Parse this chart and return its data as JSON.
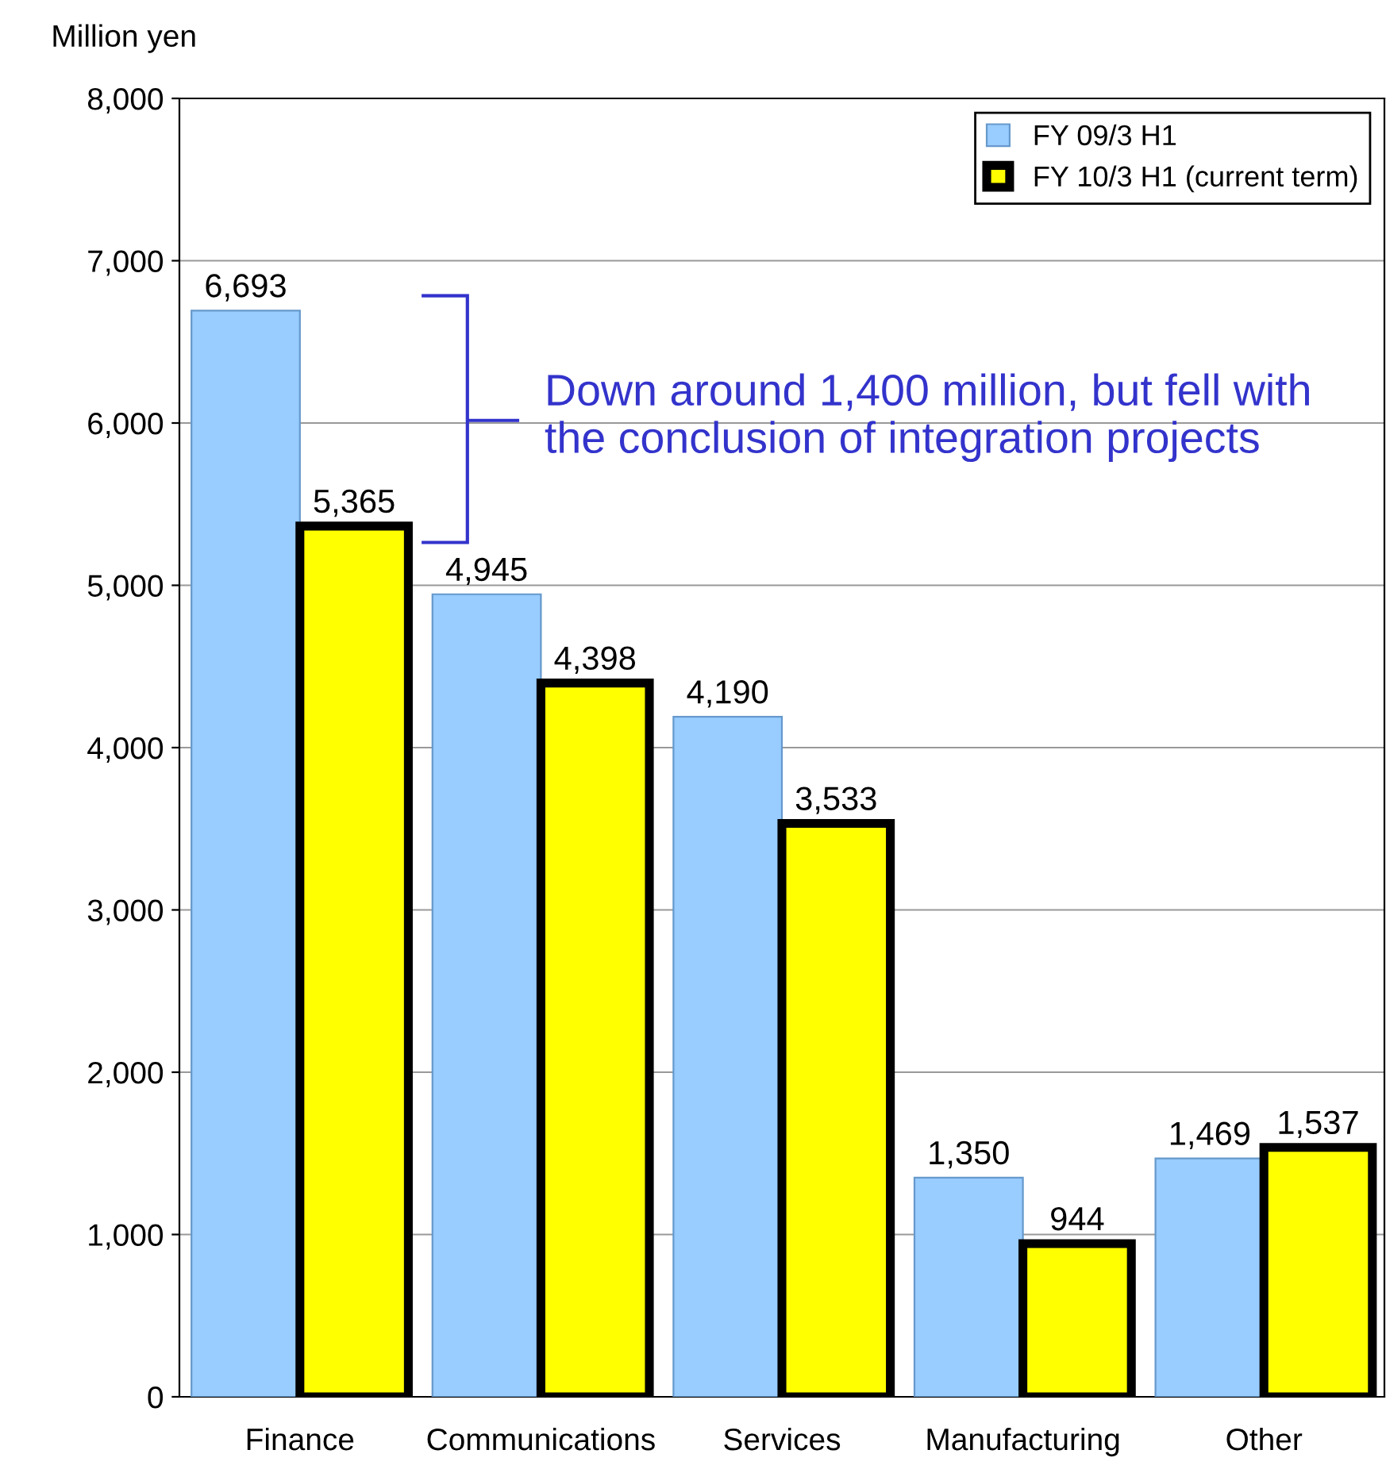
{
  "chart_data": {
    "type": "bar",
    "ylabel": "Million yen",
    "categories": [
      "Finance",
      "Communications",
      "Services",
      "Manufacturing",
      "Other"
    ],
    "series": [
      {
        "name": "FY 09/3 H1",
        "color": "#99ccff",
        "values": [
          6693,
          4945,
          4190,
          1350,
          1469
        ]
      },
      {
        "name": "FY 10/3 H1 (current term)",
        "color": "#ffff00",
        "values": [
          5365,
          4398,
          3533,
          944,
          1537
        ]
      }
    ],
    "ylim": [
      0,
      8000
    ],
    "yticks": [
      {
        "value": 0,
        "label": "0"
      },
      {
        "value": 1000,
        "label": "1,000"
      },
      {
        "value": 2000,
        "label": "2,000"
      },
      {
        "value": 3000,
        "label": "3,000"
      },
      {
        "value": 4000,
        "label": "4,000"
      },
      {
        "value": 5000,
        "label": "5,000"
      },
      {
        "value": 6000,
        "label": "6,000"
      },
      {
        "value": 7000,
        "label": "7,000"
      },
      {
        "value": 8000,
        "label": "8,000"
      }
    ],
    "value_labels": [
      [
        "6,693",
        "4,945",
        "4,190",
        "1,350",
        "1,469"
      ],
      [
        "5,365",
        "4,398",
        "3,533",
        "944",
        "1,537"
      ]
    ],
    "annotations": [
      "Down around 1,400 million, but fell with the conclusion of integration projects"
    ],
    "grid": "y",
    "legend": "top right"
  }
}
